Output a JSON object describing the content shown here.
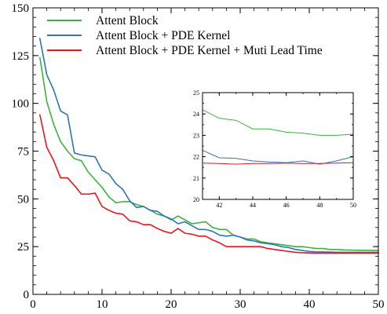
{
  "chart_data": [
    {
      "type": "line",
      "title": "",
      "xlabel": "",
      "ylabel": "",
      "xlim": [
        0,
        50
      ],
      "ylim": [
        0,
        150
      ],
      "xticks": [
        0,
        10,
        20,
        30,
        40,
        50
      ],
      "yticks": [
        0,
        25,
        50,
        75,
        100,
        125,
        150
      ],
      "grid": false,
      "legend": "top-left",
      "x": [
        1,
        2,
        3,
        4,
        5,
        6,
        7,
        8,
        9,
        10,
        11,
        12,
        13,
        14,
        15,
        16,
        17,
        18,
        19,
        20,
        21,
        22,
        23,
        24,
        25,
        26,
        27,
        28,
        29,
        30,
        31,
        32,
        33,
        34,
        35,
        36,
        37,
        38,
        39,
        40,
        41,
        42,
        43,
        44,
        45,
        46,
        47,
        48,
        49,
        50
      ],
      "series": [
        {
          "name": "Attent Block",
          "color": "#3cb43c",
          "values": [
            124,
            101,
            89,
            80,
            75,
            71,
            70,
            64,
            60,
            56,
            51,
            48,
            48.5,
            48.5,
            47,
            46,
            44,
            42,
            41,
            39,
            41,
            39,
            37,
            37.5,
            38,
            35,
            34,
            34,
            31,
            30,
            29,
            29,
            27.5,
            27,
            26.5,
            26,
            25.5,
            25,
            25,
            24.5,
            24,
            24,
            23.5,
            23.5,
            23.3,
            23.2,
            23.1,
            23.1,
            23,
            23
          ]
        },
        {
          "name": "Attent Block + PDE Kernel",
          "color": "#2f74b5",
          "values": [
            134,
            115,
            107,
            96,
            94,
            74,
            73,
            72.5,
            72,
            65,
            63,
            58,
            55,
            49,
            45.5,
            46,
            44,
            43.5,
            41,
            39.5,
            37,
            38,
            36,
            34,
            34,
            33,
            31,
            30.5,
            31,
            30,
            28.5,
            28,
            27,
            26.5,
            26,
            25,
            24.5,
            23.5,
            23,
            22.5,
            22.3,
            22.2,
            22.1,
            22,
            22,
            22,
            22,
            22,
            22,
            22
          ]
        },
        {
          "name": "Attent Block + PDE Kernel + Muti Lead Time",
          "color": "#e8161c",
          "values": [
            94,
            77,
            70,
            61,
            61,
            57,
            52.5,
            52.5,
            53,
            46,
            44,
            42.5,
            42,
            38.5,
            38,
            36.5,
            36.5,
            34.5,
            33,
            32,
            34.5,
            32,
            31.5,
            30.5,
            30.5,
            28.5,
            27,
            25,
            25,
            25,
            25,
            25,
            25,
            24,
            23.5,
            23,
            22.5,
            22,
            21.8,
            21.7,
            21.6,
            21.6,
            21.6,
            21.6,
            21.6,
            21.6,
            21.6,
            21.6,
            21.6,
            21.6
          ]
        }
      ]
    },
    {
      "type": "line",
      "role": "inset",
      "xlim": [
        41,
        50
      ],
      "ylim": [
        20,
        25
      ],
      "xticks": [
        42,
        44,
        46,
        48,
        50
      ],
      "yticks": [
        20,
        21,
        22,
        23,
        24,
        25
      ],
      "grid": false,
      "x": [
        41,
        42,
        43,
        44,
        45,
        46,
        47,
        48,
        49,
        50
      ],
      "series": [
        {
          "color": "#3cb43c",
          "values": [
            24.2,
            23.8,
            23.7,
            23.3,
            23.3,
            23.15,
            23.1,
            23.0,
            23.0,
            23.05
          ]
        },
        {
          "color": "#2f74b5",
          "values": [
            22.3,
            21.95,
            21.92,
            21.8,
            21.75,
            21.72,
            21.8,
            21.65,
            21.8,
            22.0
          ]
        },
        {
          "color": "#e8161c",
          "values": [
            21.7,
            21.68,
            21.65,
            21.68,
            21.68,
            21.7,
            21.68,
            21.68,
            21.7,
            21.72
          ]
        }
      ]
    }
  ]
}
